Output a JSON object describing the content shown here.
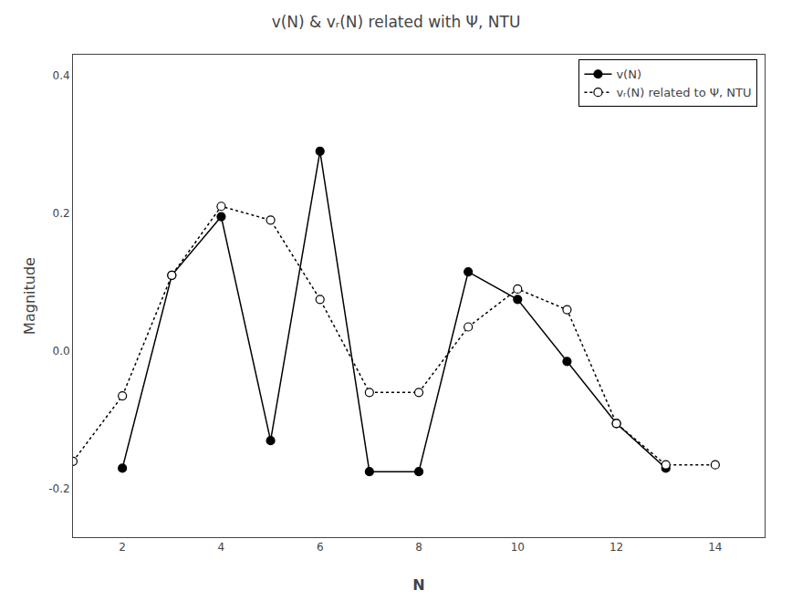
{
  "chart_data": {
    "type": "line",
    "title": "v(N) & vᵣ(N) related with Ψ, NTU",
    "xlabel": "N",
    "ylabel": "Magnitude",
    "xlim": [
      1,
      15
    ],
    "ylim": [
      -0.27,
      0.43
    ],
    "xticks": [
      2,
      4,
      6,
      8,
      10,
      12,
      14
    ],
    "yticks": [
      -0.2,
      {
        "value": 0.0,
        "label": "0.0"
      },
      0.2,
      0.4
    ],
    "grid": false,
    "legend": "upper right",
    "series": [
      {
        "name": "v(N)",
        "color": "black",
        "marker": "filled_circle",
        "line_style": "solid",
        "x": [
          2,
          3,
          4,
          5,
          6,
          7,
          8,
          9,
          10,
          11,
          12,
          13
        ],
        "values": [
          -0.17,
          0.11,
          0.195,
          -0.13,
          0.29,
          -0.175,
          -0.175,
          0.115,
          0.075,
          -0.015,
          -0.105,
          -0.17
        ]
      },
      {
        "name": "vᵣ(N) related to Ψ, NTU",
        "color": "black",
        "marker": "open_circle",
        "line_style": "dotted",
        "x": [
          1,
          2,
          3,
          4,
          5,
          6,
          7,
          8,
          9,
          10,
          11,
          12,
          13,
          14
        ],
        "values": [
          -0.16,
          -0.065,
          0.11,
          0.21,
          0.19,
          0.075,
          -0.06,
          -0.06,
          0.035,
          0.09,
          0.06,
          -0.105,
          -0.165,
          -0.165
        ]
      }
    ]
  }
}
